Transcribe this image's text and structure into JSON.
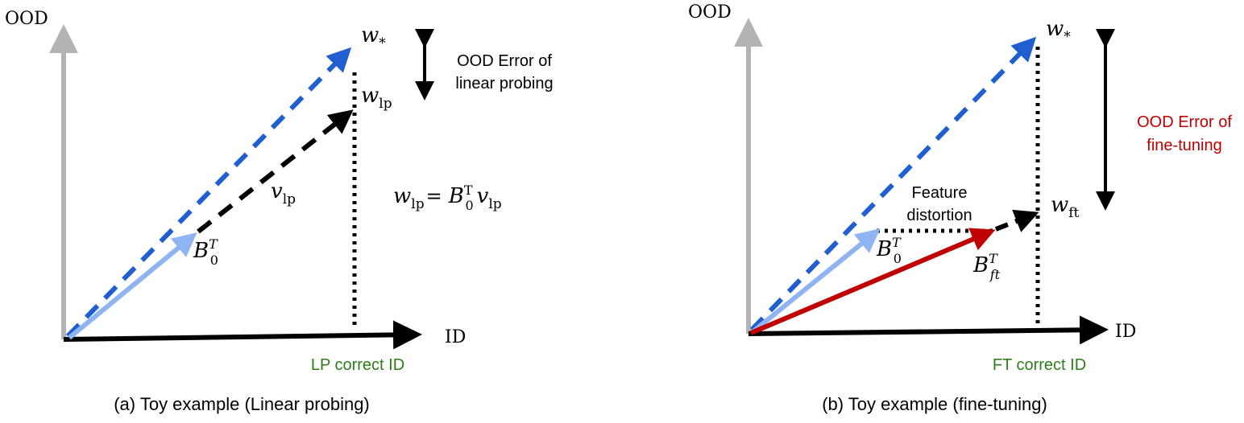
{
  "colors": {
    "axis_gray": "#b3b3b3",
    "black": "#000000",
    "blue_dashed": "#1f5fcf",
    "light_blue": "#8fb4f2",
    "red": "#c00000",
    "green": "#2e7d1a"
  },
  "panel_a": {
    "y_axis_label": "OOD",
    "x_axis_label": "ID",
    "w_star": {
      "base": "w",
      "sub": "*"
    },
    "w_lp": {
      "base": "w",
      "sub": "lp"
    },
    "v_lp": {
      "base": "v",
      "sub": "lp"
    },
    "b0": {
      "base": "B",
      "sup": "T",
      "sub": "0"
    },
    "equation": {
      "lhs_base": "w",
      "lhs_sub": "lp",
      "eq": "=",
      "b_base": "B",
      "b_sup": "T",
      "b_sub": "0",
      "v_base": "v",
      "v_sub": "lp"
    },
    "error_label_line1": "OOD Error of",
    "error_label_line2": "linear probing",
    "correct_id": "LP correct ID",
    "caption": "(a) Toy example (Linear probing)"
  },
  "panel_b": {
    "y_axis_label": "OOD",
    "x_axis_label": "ID",
    "w_star": {
      "base": "w",
      "sub": "*"
    },
    "w_ft": {
      "base": "w",
      "sub": "ft"
    },
    "b0": {
      "base": "B",
      "sup": "T",
      "sub": "0"
    },
    "bft": {
      "base": "B",
      "sup": "T",
      "sub": "ft"
    },
    "distortion_line1": "Feature",
    "distortion_line2": "distortion",
    "error_label_line1": "OOD Error of",
    "error_label_line2": "fine-tuning",
    "correct_id": "FT correct ID",
    "caption": "(b) Toy example (fine-tuning)"
  }
}
